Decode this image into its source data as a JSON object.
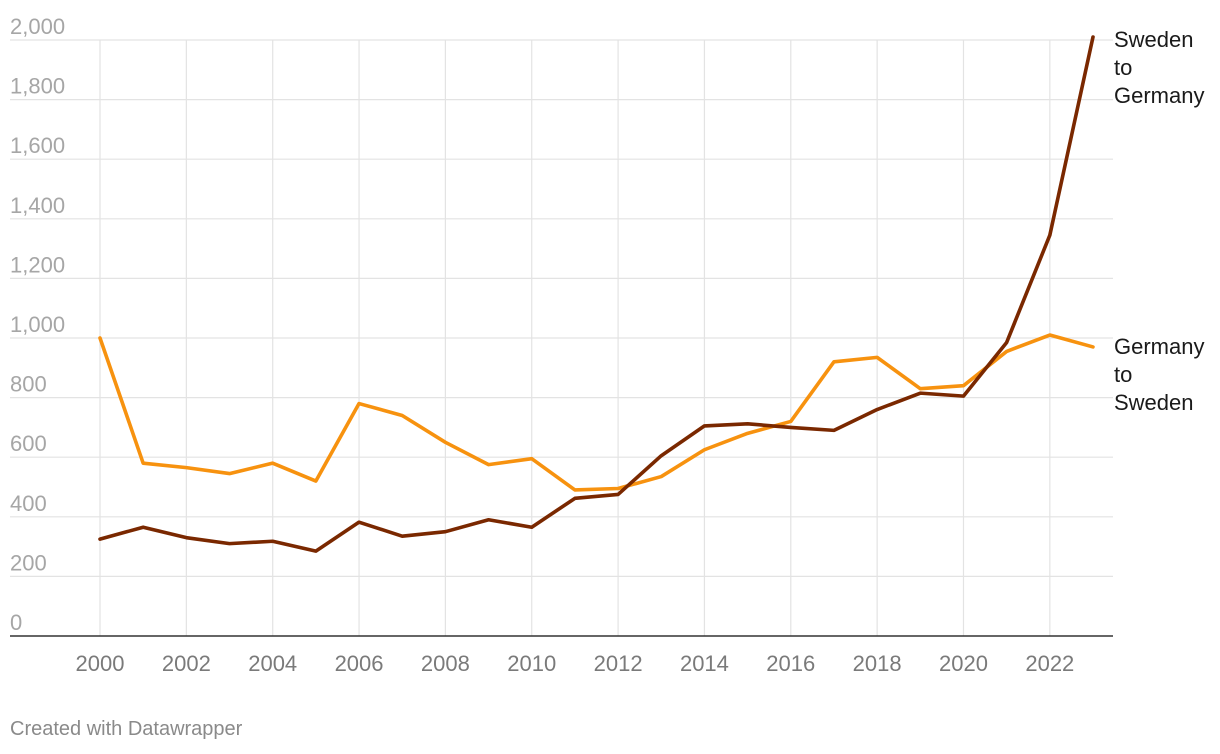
{
  "credit": "Created with Datawrapper",
  "chart_data": {
    "type": "line",
    "title": "",
    "xlabel": "",
    "ylabel": "",
    "x": [
      2000,
      2001,
      2002,
      2003,
      2004,
      2005,
      2006,
      2007,
      2008,
      2009,
      2010,
      2011,
      2012,
      2013,
      2014,
      2015,
      2016,
      2017,
      2018,
      2019,
      2020,
      2021,
      2022,
      2023
    ],
    "x_ticks": [
      "2000",
      "2002",
      "2004",
      "2006",
      "2008",
      "2010",
      "2012",
      "2014",
      "2016",
      "2018",
      "2020",
      "2022"
    ],
    "y_ticks": [
      "0",
      "200",
      "400",
      "600",
      "800",
      "1,000",
      "1,200",
      "1,400",
      "1,600",
      "1,800",
      "2,000"
    ],
    "xlim": [
      2000,
      2023
    ],
    "ylim": [
      0,
      2000
    ],
    "grid": true,
    "series": [
      {
        "name": "Sweden to Germany",
        "label_lines": [
          "Sweden",
          "to",
          "Germany"
        ],
        "color": "#7a2800",
        "values": [
          325,
          365,
          330,
          310,
          318,
          285,
          382,
          335,
          350,
          390,
          365,
          462,
          475,
          605,
          705,
          712,
          700,
          690,
          760,
          815,
          805,
          985,
          1345,
          2010
        ]
      },
      {
        "name": "Germany to Sweden",
        "label_lines": [
          "Germany",
          "to",
          "Sweden"
        ],
        "color": "#f7920f",
        "values": [
          1000,
          580,
          565,
          545,
          580,
          520,
          780,
          740,
          650,
          575,
          595,
          490,
          495,
          535,
          625,
          680,
          720,
          920,
          935,
          830,
          840,
          955,
          1010,
          970
        ]
      }
    ]
  }
}
